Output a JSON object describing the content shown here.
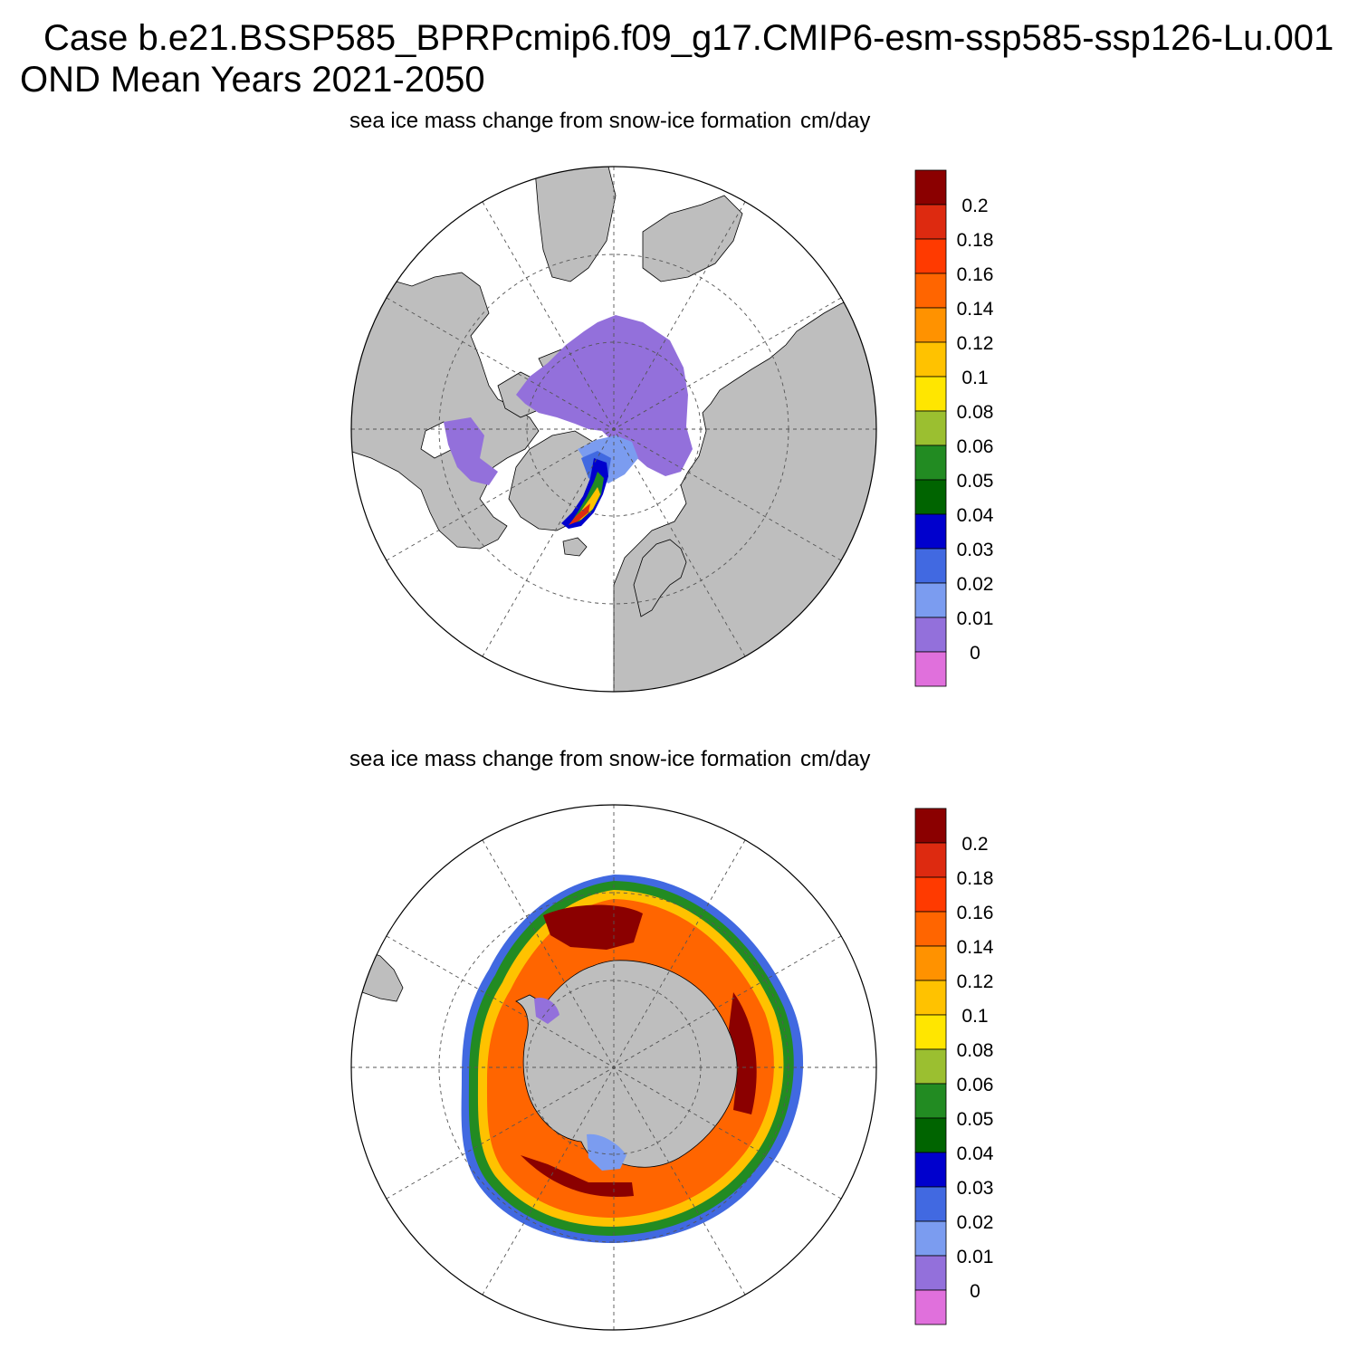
{
  "header": {
    "case_title": "Case b.e21.BSSP585_BPRPcmip6.f09_g17.CMIP6-esm-ssp585-ssp126-Lu.001",
    "period_title": "OND Mean   Years 2021-2050"
  },
  "panels": [
    {
      "hemisphere": "north",
      "variable_label": "sea ice mass change from snow-ice formation",
      "units": "cm/day"
    },
    {
      "hemisphere": "south",
      "variable_label": "sea ice mass change from snow-ice formation",
      "units": "cm/day"
    }
  ],
  "colorbar": {
    "labels": [
      "0.2",
      "0.18",
      "0.16",
      "0.14",
      "0.12",
      "0.1",
      "0.08",
      "0.06",
      "0.05",
      "0.04",
      "0.03",
      "0.02",
      "0.01",
      "0"
    ],
    "colors": [
      "#8b0000",
      "#dd2a10",
      "#ff3a00",
      "#ff6500",
      "#ff9200",
      "#ffc200",
      "#ffe600",
      "#9bbf30",
      "#228b22",
      "#006400",
      "#0000cd",
      "#4169e1",
      "#7b9cf0",
      "#9370db",
      "#e070dc"
    ]
  },
  "map_style": {
    "land": "#bebebe",
    "ocean": "#ffffff",
    "grid_line": "#555555"
  }
}
